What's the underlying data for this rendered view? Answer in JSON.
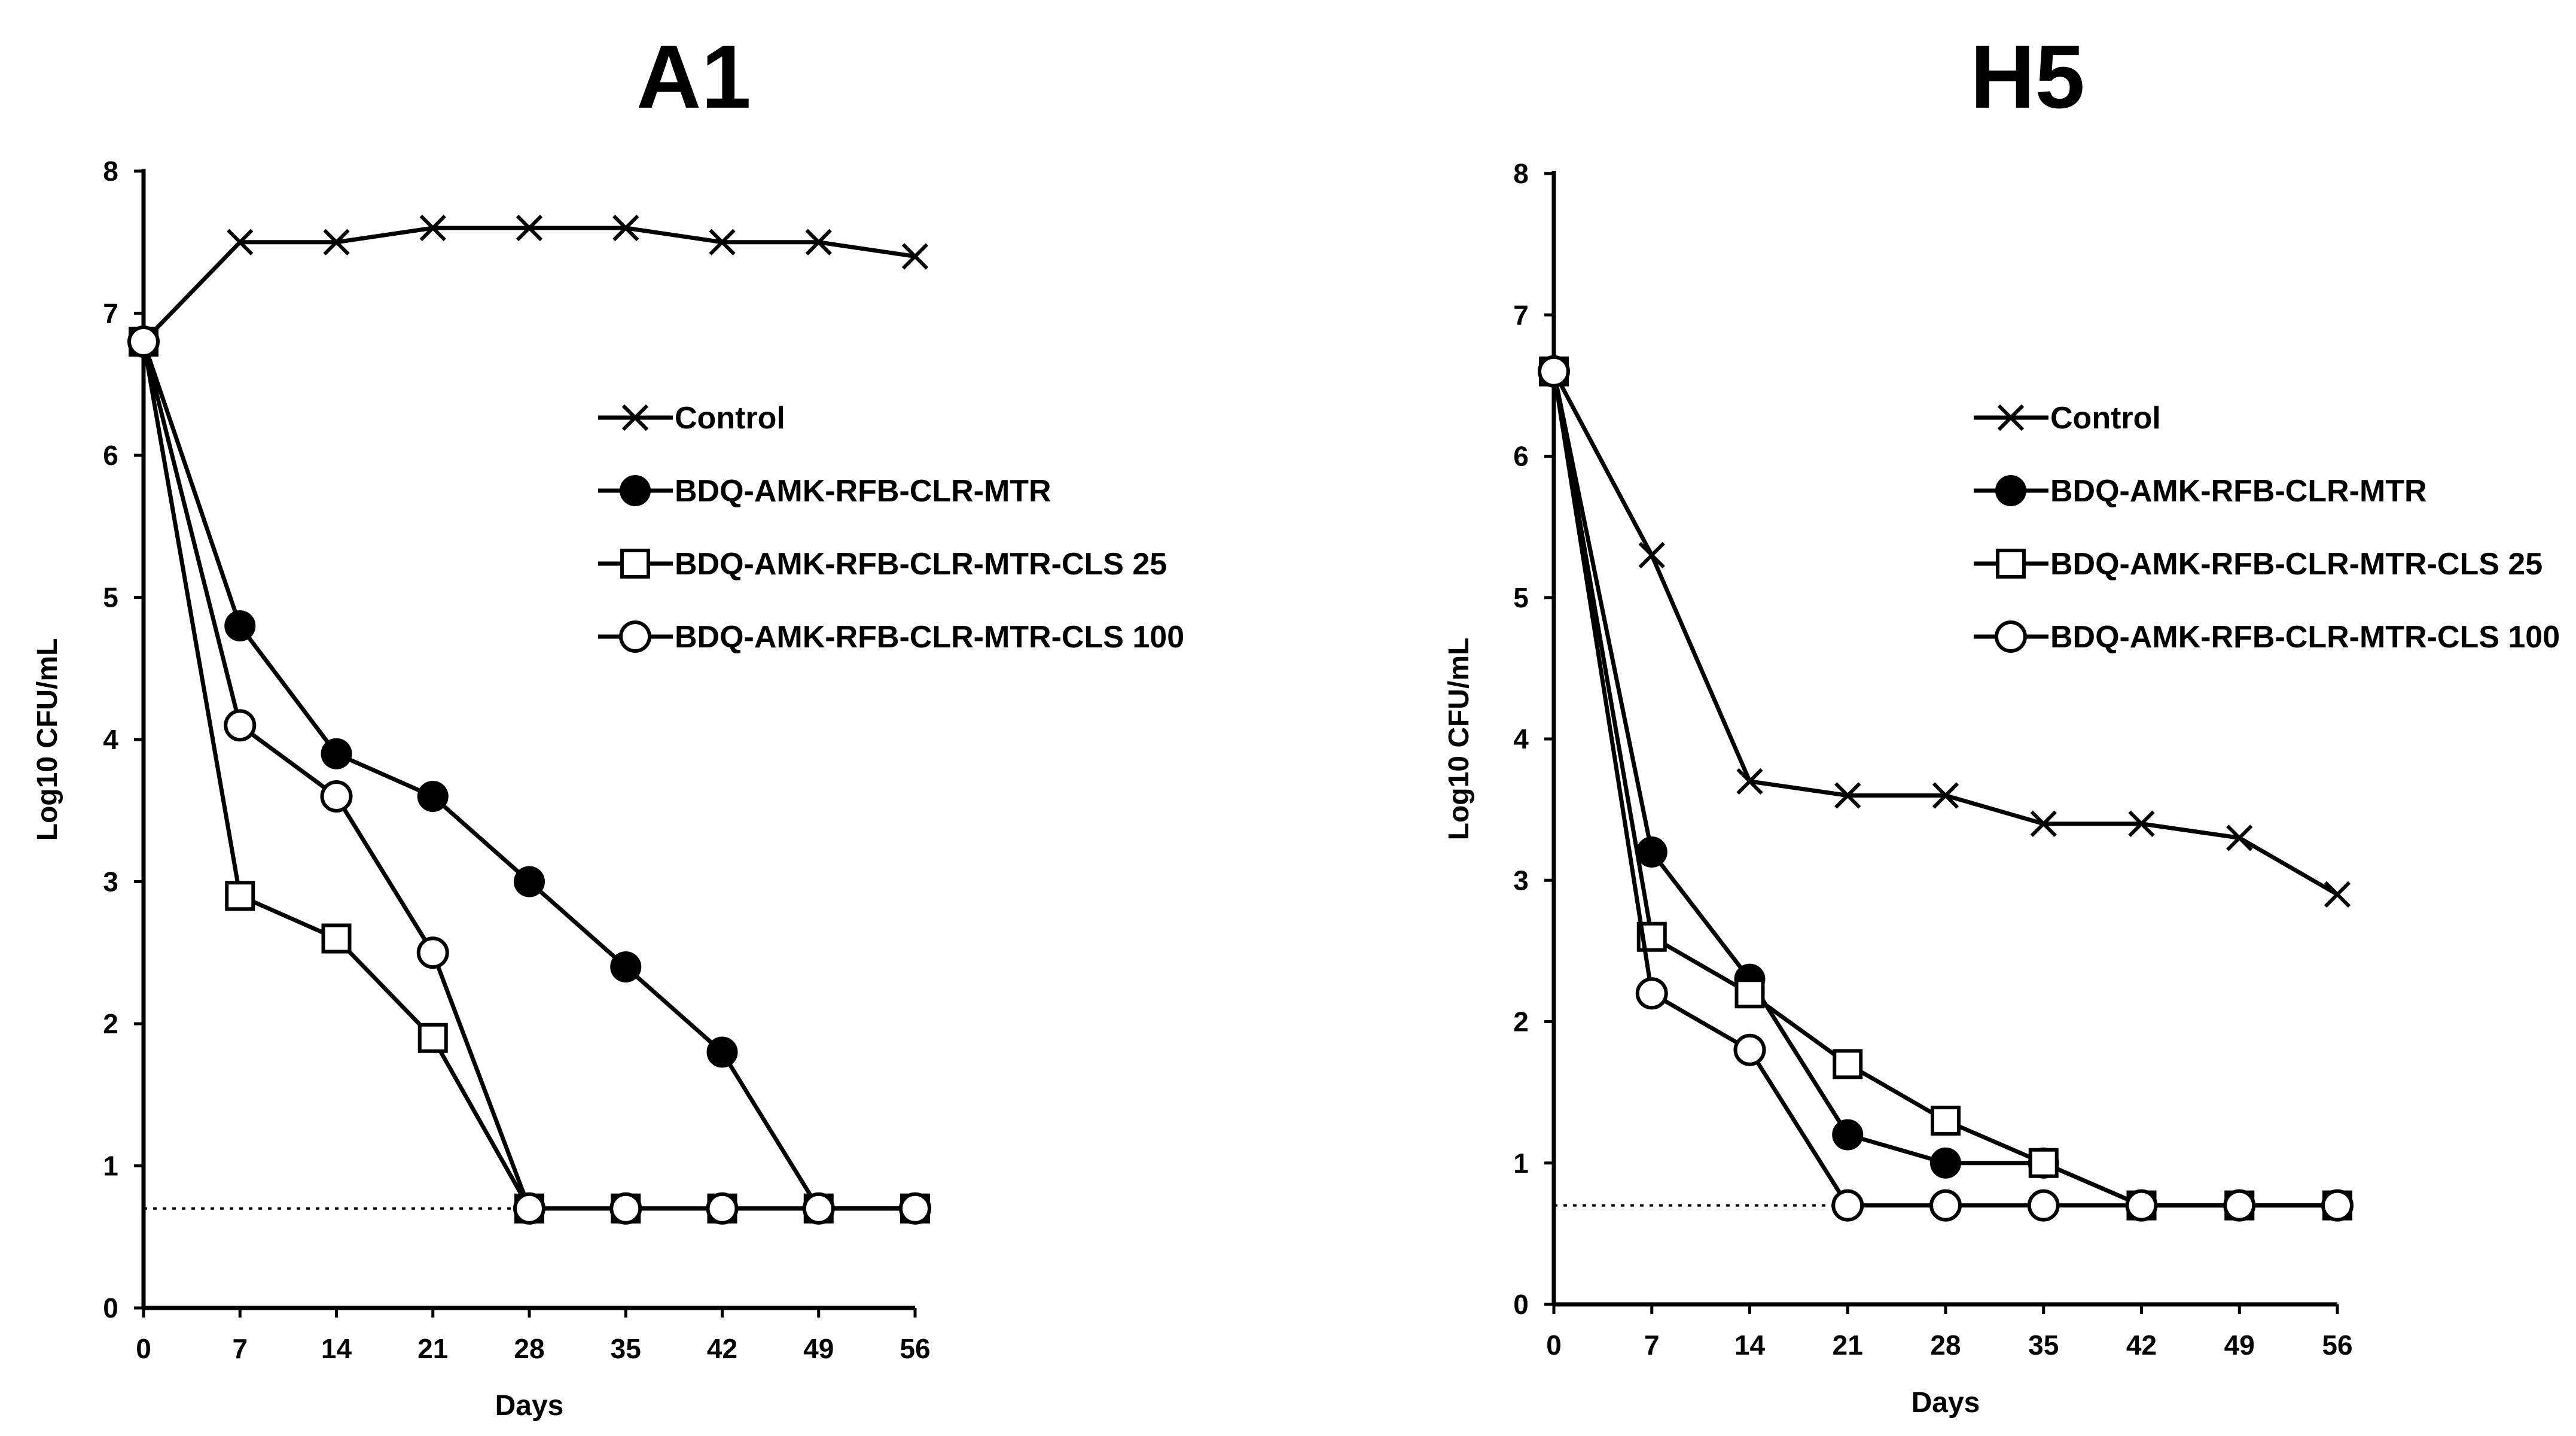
{
  "chart_data": [
    {
      "type": "line",
      "title": "A1",
      "xlabel": "Days",
      "ylabel": "Log10 CFU/mL",
      "x": [
        0,
        7,
        14,
        21,
        28,
        35,
        42,
        49,
        56
      ],
      "xticks": [
        "0",
        "7",
        "14",
        "21",
        "28",
        "35",
        "42",
        "49",
        "56"
      ],
      "yticks": [
        "0",
        "1",
        "2",
        "3",
        "4",
        "5",
        "6",
        "7",
        "8"
      ],
      "xlim": [
        0,
        56
      ],
      "ylim": [
        0,
        8
      ],
      "detection_limit": 0.7,
      "legend_position": "right",
      "series": [
        {
          "name": "Control",
          "marker": "x",
          "x": [
            0,
            7,
            14,
            21,
            28,
            35,
            42,
            49,
            56
          ],
          "values": [
            6.8,
            7.5,
            7.5,
            7.6,
            7.6,
            7.6,
            7.5,
            7.5,
            7.4
          ]
        },
        {
          "name": "BDQ-AMK-RFB-CLR-MTR",
          "marker": "filled-circle",
          "x": [
            0,
            7,
            14,
            21,
            28,
            35,
            42,
            49,
            56
          ],
          "values": [
            6.8,
            4.8,
            3.9,
            3.6,
            3.0,
            2.4,
            1.8,
            0.7,
            0.7
          ]
        },
        {
          "name": "BDQ-AMK-RFB-CLR-MTR-CLS 25",
          "marker": "open-square",
          "x": [
            0,
            7,
            14,
            21,
            28,
            35,
            42,
            49,
            56
          ],
          "values": [
            6.8,
            2.9,
            2.6,
            1.9,
            0.7,
            0.7,
            0.7,
            0.7,
            0.7
          ]
        },
        {
          "name": "BDQ-AMK-RFB-CLR-MTR-CLS 100",
          "marker": "open-circle",
          "x": [
            0,
            7,
            14,
            21,
            28,
            35,
            42,
            49,
            56
          ],
          "values": [
            6.8,
            4.1,
            3.6,
            2.5,
            0.7,
            0.7,
            0.7,
            0.7,
            0.7
          ]
        }
      ]
    },
    {
      "type": "line",
      "title": "H5",
      "xlabel": "Days",
      "ylabel": "Log10 CFU/mL",
      "x": [
        0,
        7,
        14,
        21,
        28,
        35,
        42,
        49,
        56
      ],
      "xticks": [
        "0",
        "7",
        "14",
        "21",
        "28",
        "35",
        "42",
        "49",
        "56"
      ],
      "yticks": [
        "0",
        "1",
        "2",
        "3",
        "4",
        "5",
        "6",
        "7",
        "8"
      ],
      "xlim": [
        0,
        56
      ],
      "ylim": [
        0,
        8
      ],
      "detection_limit": 0.7,
      "legend_position": "right",
      "series": [
        {
          "name": "Control",
          "marker": "x",
          "x": [
            0,
            7,
            14,
            21,
            28,
            35,
            42,
            49,
            56
          ],
          "values": [
            6.6,
            5.3,
            3.7,
            3.6,
            3.6,
            3.4,
            3.4,
            3.3,
            2.9
          ]
        },
        {
          "name": "BDQ-AMK-RFB-CLR-MTR",
          "marker": "filled-circle",
          "x": [
            0,
            7,
            14,
            21,
            28,
            35,
            42,
            49,
            56
          ],
          "values": [
            6.6,
            3.2,
            2.3,
            1.2,
            1.0,
            1.0,
            0.7,
            0.7,
            0.7
          ]
        },
        {
          "name": "BDQ-AMK-RFB-CLR-MTR-CLS 25",
          "marker": "open-square",
          "x": [
            0,
            7,
            14,
            21,
            28,
            35,
            42,
            49,
            56
          ],
          "values": [
            6.6,
            2.6,
            2.2,
            1.7,
            1.3,
            1.0,
            0.7,
            0.7,
            0.7
          ]
        },
        {
          "name": "BDQ-AMK-RFB-CLR-MTR-CLS 100",
          "marker": "open-circle",
          "x": [
            0,
            7,
            14,
            21,
            28,
            35,
            42,
            49,
            56
          ],
          "values": [
            6.6,
            2.2,
            1.8,
            0.7,
            0.7,
            0.7,
            0.7,
            0.7,
            0.7
          ]
        }
      ]
    }
  ]
}
